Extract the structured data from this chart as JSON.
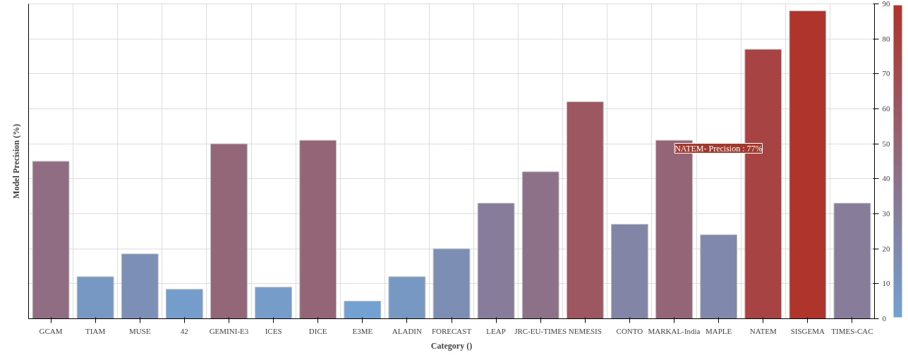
{
  "chart_data": {
    "type": "bar",
    "xlabel": "Category ()",
    "ylabel": "Model Precision (%)",
    "categories": [
      "GCAM",
      "TIAM",
      "MUSE",
      "42",
      "GEMINI-E3",
      "ICES",
      "DICE",
      "E3ME",
      "ALADIN",
      "FORECAST",
      "LEAP",
      "JRC-EU-TIMES",
      "NEMESIS",
      "CONTO",
      "MARKAL-India",
      "MAPLE",
      "NATEM",
      "SISGEMA",
      "TIMES-CAC"
    ],
    "values": [
      45,
      12,
      18.5,
      8.4,
      50,
      9,
      51,
      5,
      12,
      20,
      33,
      42,
      62,
      27,
      51,
      24,
      77,
      88,
      33
    ],
    "colors": [
      "#906d82",
      "#7898c4",
      "#7c90b7",
      "#759dcb",
      "#936678",
      "#769cca",
      "#946576",
      "#73a1d2",
      "#7898c4",
      "#7d8eb4",
      "#877d9a",
      "#8d7188",
      "#9c5760",
      "#8385a6",
      "#946576",
      "#8088ac",
      "#a74342",
      "#af352c",
      "#877d9a"
    ],
    "ylim": [
      0,
      90
    ],
    "yticks": [
      0,
      10,
      20,
      30,
      40,
      50,
      60,
      70,
      80,
      90
    ],
    "grid": true,
    "annotations": [
      "NATEM- Precision : 77%"
    ]
  }
}
